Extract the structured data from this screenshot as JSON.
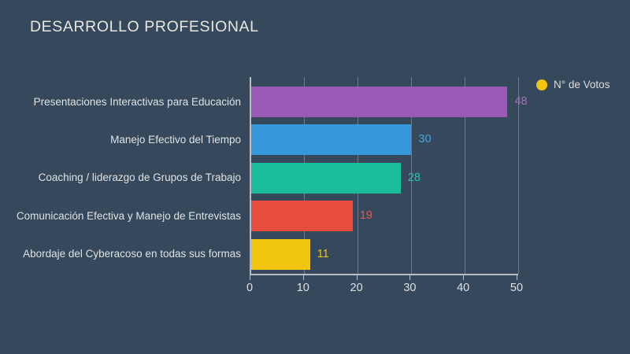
{
  "page": {
    "background_color": "#35485c",
    "axis_color": "#b9bec5",
    "gridline_color": "#6e7a88",
    "text_color": "#e0e2e5"
  },
  "title": "DESARROLLO PROFESIONAL",
  "legend": {
    "label": "N° de Votos",
    "marker_color": "#f1c40f",
    "position": "top-right"
  },
  "chart_data": {
    "type": "bar",
    "orientation": "horizontal",
    "title": "DESARROLLO PROFESIONAL",
    "series_name": "N° de Votos",
    "categories": [
      "Presentaciones Interactivas para Educación",
      "Manejo Efectivo del Tiempo",
      "Coaching / liderazgo de Grupos de Trabajo",
      "Comunicación Efectiva y Manejo de Entrevistas",
      "Abordaje del Cyberacoso en todas sus formas"
    ],
    "values": [
      48,
      30,
      28,
      19,
      11
    ],
    "bar_colors": [
      "#9b59b6",
      "#3498db",
      "#1abc9c",
      "#e74c3c",
      "#f1c40f"
    ],
    "value_label_colors": [
      "#a86cc1",
      "#4aa3de",
      "#2cc3a6",
      "#e85b4c",
      "#f1c40f"
    ],
    "xlim": [
      0,
      50
    ],
    "x_ticks": [
      0,
      10,
      20,
      30,
      40,
      50
    ],
    "xlabel": "",
    "ylabel": "",
    "grid": true,
    "legend_position": "top-right"
  }
}
